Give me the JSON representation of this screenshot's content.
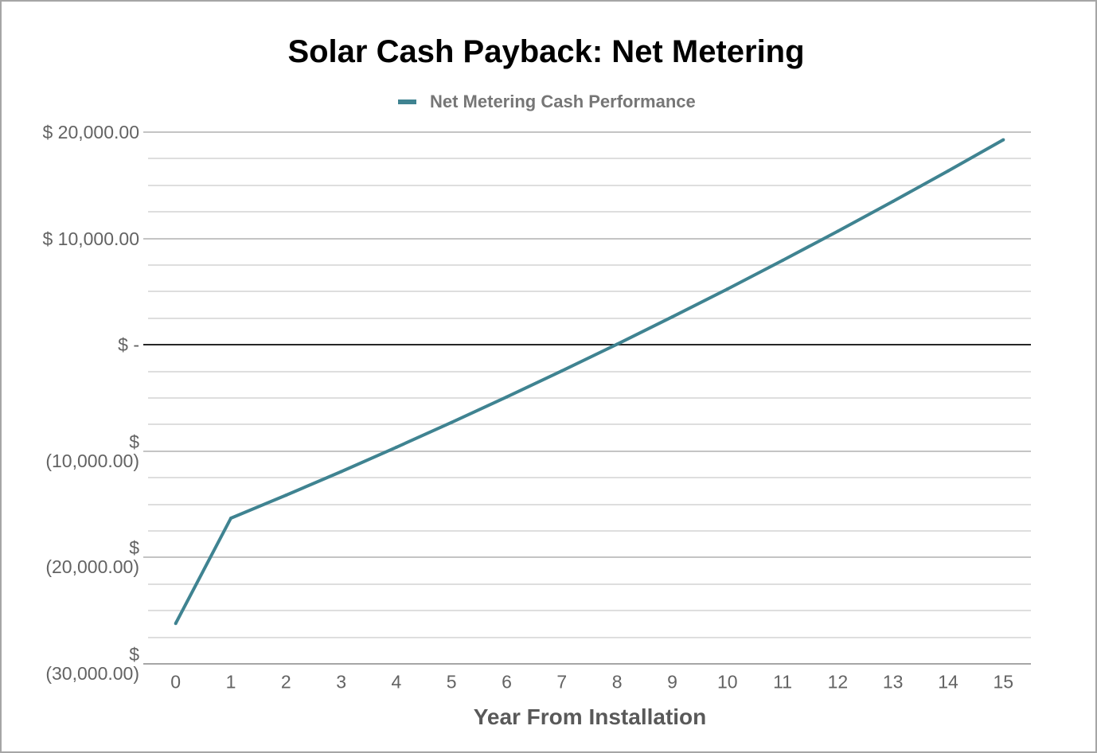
{
  "colors": {
    "background": "#ffffff",
    "frame": "#a6a6a6",
    "title": "#000000",
    "series": "#3f8391",
    "legend_text": "#767676",
    "axis_text": "#636363",
    "axis_title": "#595959",
    "gridline_minor": "#dedede",
    "gridline_major": "#c4c4c4",
    "zero_line": "#262626",
    "axis_line": "#a6a6a6"
  },
  "chart_data": {
    "type": "line",
    "title": "Solar Cash Payback: Net Metering",
    "xlabel": "Year From Installation",
    "ylabel": "",
    "legend_position": "top",
    "grid": true,
    "categories": [
      "0",
      "1",
      "2",
      "3",
      "4",
      "5",
      "6",
      "7",
      "8",
      "9",
      "10",
      "11",
      "12",
      "13",
      "14",
      "15"
    ],
    "series": [
      {
        "name": "Net Metering Cash Performance",
        "values": [
          -26200,
          -16300,
          -14140,
          -11920,
          -9630,
          -7300,
          -4900,
          -2450,
          60,
          2630,
          5250,
          7940,
          10680,
          13490,
          16350,
          19280
        ]
      }
    ],
    "ylim": [
      -30000,
      20000
    ],
    "y_major_step": 10000,
    "y_minor_step": 2500,
    "y_ticks": [
      20000,
      10000,
      0,
      -10000,
      -20000,
      -30000
    ],
    "y_tick_labels": [
      "$ 20,000.00",
      "$ 10,000.00",
      "$ -",
      "$ (10,000.00)",
      "$ (20,000.00)",
      "$ (30,000.00)"
    ]
  }
}
